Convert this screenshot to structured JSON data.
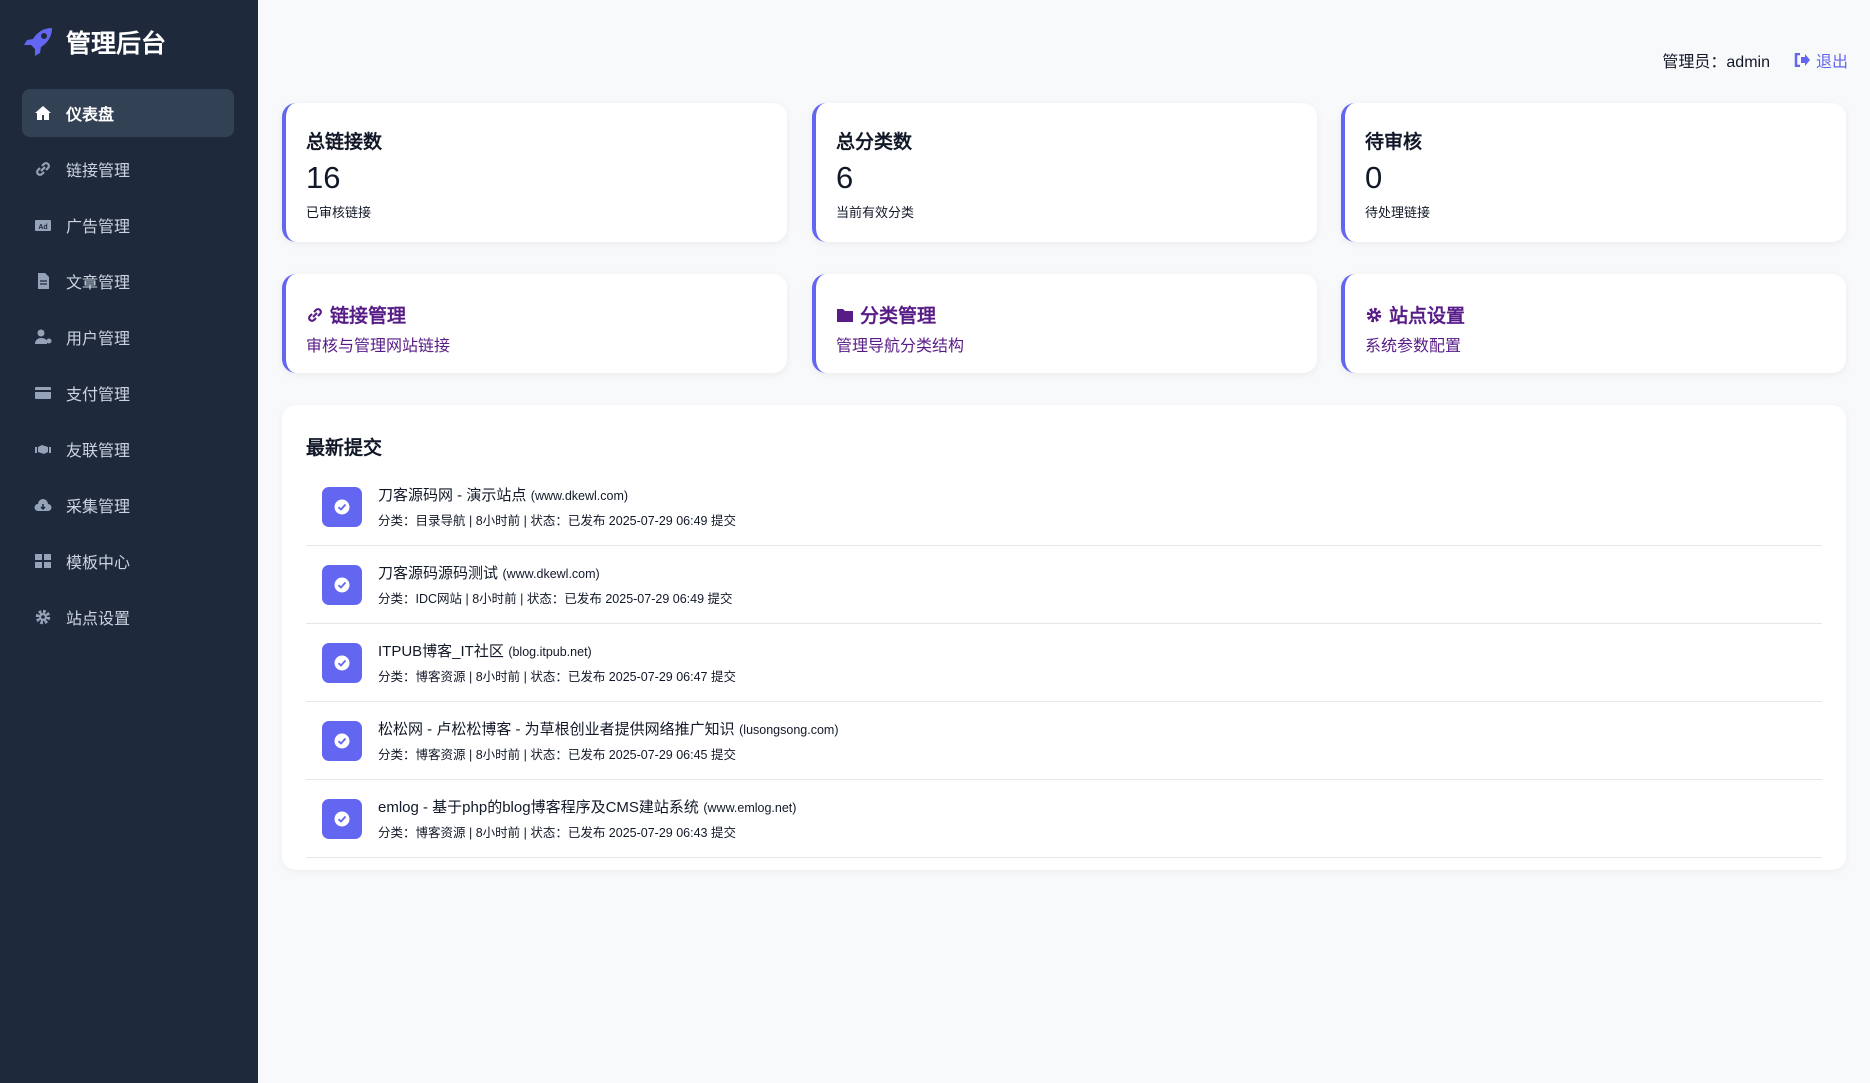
{
  "app": {
    "title": "管理后台"
  },
  "sidebar": {
    "items": [
      {
        "label": "仪表盘",
        "icon": "home-icon",
        "active": true
      },
      {
        "label": "链接管理",
        "icon": "link-icon"
      },
      {
        "label": "广告管理",
        "icon": "ad-icon"
      },
      {
        "label": "文章管理",
        "icon": "file-icon"
      },
      {
        "label": "用户管理",
        "icon": "user-cog-icon"
      },
      {
        "label": "支付管理",
        "icon": "credit-card-icon"
      },
      {
        "label": "友联管理",
        "icon": "handshake-icon"
      },
      {
        "label": "采集管理",
        "icon": "cloud-download-icon"
      },
      {
        "label": "模板中心",
        "icon": "grid-icon"
      },
      {
        "label": "站点设置",
        "icon": "gear-icon"
      }
    ]
  },
  "topbar": {
    "user": "管理员：admin",
    "logout": "退出"
  },
  "stats": [
    {
      "title": "总链接数",
      "value": "16",
      "sub": "已审核链接"
    },
    {
      "title": "总分类数",
      "value": "6",
      "sub": "当前有效分类"
    },
    {
      "title": "待审核",
      "value": "0",
      "sub": "待处理链接"
    }
  ],
  "quick": [
    {
      "title": "链接管理",
      "sub": "审核与管理网站链接",
      "icon": "link-icon"
    },
    {
      "title": "分类管理",
      "sub": "管理导航分类结构",
      "icon": "folder-icon"
    },
    {
      "title": "站点设置",
      "sub": "系统参数配置",
      "icon": "gear-icon"
    }
  ],
  "recent": {
    "title": "最新提交",
    "items": [
      {
        "title": "刀客源码网 - 演示站点",
        "url": "(www.dkewl.com)",
        "meta": "分类：目录导航 | 8小时前 | 状态：已发布 2025-07-29 06:49 提交"
      },
      {
        "title": "刀客源码源码测试",
        "url": "(www.dkewl.com)",
        "meta": "分类：IDC网站 | 8小时前 | 状态：已发布 2025-07-29 06:49 提交"
      },
      {
        "title": "ITPUB博客_IT社区",
        "url": "(blog.itpub.net)",
        "meta": "分类：博客资源 | 8小时前 | 状态：已发布 2025-07-29 06:47 提交"
      },
      {
        "title": "松松网 - 卢松松博客 - 为草根创业者提供网络推广知识",
        "url": "(lusongsong.com)",
        "meta": "分类：博客资源 | 8小时前 | 状态：已发布 2025-07-29 06:45 提交"
      },
      {
        "title": "emlog - 基于php的blog博客程序及CMS建站系统",
        "url": "(www.emlog.net)",
        "meta": "分类：博客资源 | 8小时前 | 状态：已发布 2025-07-29 06:43 提交"
      }
    ]
  },
  "colors": {
    "accent": "#6366f1",
    "sidebar": "#1e293b",
    "link": "#581c87"
  }
}
